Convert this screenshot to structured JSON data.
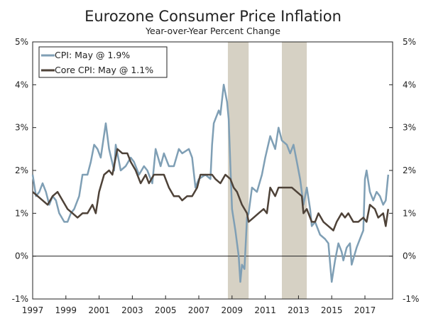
{
  "chart_data": {
    "type": "line",
    "title": "Eurozone Consumer Price Inflation",
    "subtitle": "Year-over-Year Percent Change",
    "xlim": [
      1997,
      2018.5
    ],
    "ylim": [
      -1,
      5
    ],
    "x_ticks": [
      1997,
      1999,
      2001,
      2003,
      2005,
      2007,
      2009,
      2011,
      2013,
      2015,
      2017
    ],
    "y_ticks": [
      -1,
      0,
      1,
      2,
      3,
      4,
      5
    ],
    "y_tick_labels": [
      "-1%",
      "0%",
      "1%",
      "2%",
      "3%",
      "4%",
      "5%"
    ],
    "legend_placement": "top-left",
    "shaded_periods": [
      [
        2008.75,
        2010.0
      ],
      [
        2012.0,
        2013.5
      ]
    ],
    "shade_color": "#d6d1c4",
    "series": [
      {
        "name": "CPI: May @ 1.9%",
        "color": "#7f9fb5",
        "x": [
          1997.0,
          1997.2,
          1997.4,
          1997.6,
          1997.8,
          1998.0,
          1998.2,
          1998.4,
          1998.6,
          1998.9,
          1999.1,
          1999.3,
          1999.5,
          1999.8,
          2000.0,
          2000.3,
          2000.5,
          2000.7,
          2000.9,
          2001.1,
          2001.4,
          2001.6,
          2001.9,
          2002.0,
          2002.3,
          2002.6,
          2002.9,
          2003.1,
          2003.4,
          2003.7,
          2003.9,
          2004.2,
          2004.4,
          2004.7,
          2004.9,
          2005.2,
          2005.5,
          2005.8,
          2006.0,
          2006.4,
          2006.6,
          2006.8,
          2007.0,
          2007.4,
          2007.7,
          2007.8,
          2007.9,
          2008.2,
          2008.3,
          2008.5,
          2008.7,
          2008.8,
          2008.9,
          2009.0,
          2009.2,
          2009.4,
          2009.5,
          2009.6,
          2009.75,
          2009.9,
          2010.0,
          2010.2,
          2010.5,
          2010.8,
          2011.0,
          2011.3,
          2011.6,
          2011.8,
          2012.0,
          2012.3,
          2012.5,
          2012.7,
          2012.9,
          2013.1,
          2013.3,
          2013.5,
          2013.7,
          2013.8,
          2014.0,
          2014.3,
          2014.6,
          2014.8,
          2015.0,
          2015.2,
          2015.4,
          2015.6,
          2015.7,
          2015.9,
          2016.1,
          2016.2,
          2016.5,
          2016.8,
          2016.9,
          2017.0,
          2017.1,
          2017.3,
          2017.5,
          2017.7,
          2017.9,
          2018.1,
          2018.25,
          2018.4
        ],
        "values": [
          1.9,
          1.4,
          1.5,
          1.7,
          1.5,
          1.2,
          1.4,
          1.3,
          1.0,
          0.8,
          0.8,
          1.0,
          1.1,
          1.4,
          1.9,
          1.9,
          2.2,
          2.6,
          2.5,
          2.3,
          3.1,
          2.5,
          2.0,
          2.6,
          2.0,
          2.1,
          2.3,
          2.2,
          1.9,
          2.1,
          2.0,
          1.7,
          2.5,
          2.1,
          2.4,
          2.1,
          2.1,
          2.5,
          2.4,
          2.5,
          2.3,
          1.6,
          1.8,
          1.9,
          1.8,
          2.6,
          3.1,
          3.4,
          3.3,
          4.0,
          3.6,
          3.2,
          2.1,
          1.1,
          0.6,
          0.0,
          -0.6,
          -0.2,
          -0.3,
          0.9,
          1.0,
          1.6,
          1.5,
          1.9,
          2.3,
          2.8,
          2.5,
          3.0,
          2.7,
          2.6,
          2.4,
          2.6,
          2.2,
          1.8,
          1.2,
          1.6,
          1.1,
          0.7,
          0.8,
          0.5,
          0.4,
          0.3,
          -0.6,
          -0.1,
          0.3,
          0.1,
          -0.1,
          0.2,
          0.3,
          -0.2,
          0.2,
          0.5,
          0.6,
          1.8,
          2.0,
          1.5,
          1.3,
          1.5,
          1.4,
          1.2,
          1.3,
          1.9
        ]
      },
      {
        "name": "Core CPI: May @ 1.1%",
        "color": "#4e4238",
        "x": [
          1997.0,
          1997.3,
          1997.6,
          1997.9,
          1998.2,
          1998.5,
          1998.8,
          1999.1,
          1999.4,
          1999.7,
          2000.0,
          2000.3,
          2000.6,
          2000.8,
          2001.0,
          2001.3,
          2001.6,
          2001.8,
          2002.1,
          2002.4,
          2002.7,
          2002.9,
          2003.2,
          2003.5,
          2003.8,
          2004.0,
          2004.3,
          2004.6,
          2004.9,
          2005.2,
          2005.5,
          2005.8,
          2006.0,
          2006.3,
          2006.6,
          2006.9,
          2007.1,
          2007.5,
          2007.8,
          2008.0,
          2008.3,
          2008.6,
          2008.9,
          2009.1,
          2009.3,
          2009.6,
          2009.9,
          2010.0,
          2010.3,
          2010.6,
          2010.9,
          2011.1,
          2011.3,
          2011.6,
          2011.8,
          2012.2,
          2012.6,
          2012.9,
          2013.2,
          2013.3,
          2013.5,
          2013.8,
          2014.0,
          2014.2,
          2014.5,
          2014.8,
          2015.1,
          2015.3,
          2015.6,
          2015.8,
          2016.0,
          2016.3,
          2016.6,
          2016.9,
          2017.1,
          2017.3,
          2017.6,
          2017.8,
          2018.1,
          2018.25,
          2018.4
        ],
        "values": [
          1.5,
          1.4,
          1.3,
          1.2,
          1.4,
          1.5,
          1.3,
          1.1,
          1.0,
          0.9,
          1.0,
          1.0,
          1.2,
          1.0,
          1.5,
          1.9,
          2.0,
          1.9,
          2.5,
          2.4,
          2.4,
          2.2,
          2.0,
          1.7,
          1.9,
          1.7,
          1.9,
          1.9,
          1.9,
          1.6,
          1.4,
          1.4,
          1.3,
          1.4,
          1.4,
          1.6,
          1.9,
          1.9,
          1.9,
          1.8,
          1.7,
          1.9,
          1.8,
          1.6,
          1.5,
          1.2,
          1.0,
          0.8,
          0.9,
          1.0,
          1.1,
          1.0,
          1.6,
          1.4,
          1.6,
          1.6,
          1.6,
          1.5,
          1.4,
          1.0,
          1.1,
          0.8,
          0.8,
          1.0,
          0.8,
          0.7,
          0.6,
          0.8,
          1.0,
          0.9,
          1.0,
          0.8,
          0.8,
          0.9,
          0.8,
          1.2,
          1.1,
          0.9,
          1.0,
          0.7,
          1.1
        ]
      }
    ]
  }
}
